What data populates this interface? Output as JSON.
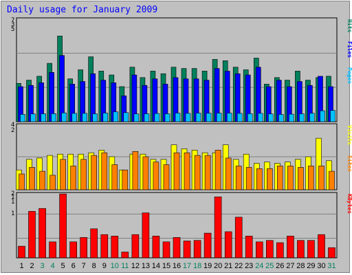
{
  "title": "Daily usage for January 2009",
  "colors": {
    "background": "#c0c0c0",
    "grid": "#808080",
    "hits": "#00805c",
    "files": "#0000ff",
    "pages": "#00c0ff",
    "visits": "#ffff00",
    "sites": "#ff8000",
    "kbytes": "#ff0000",
    "weekday_label": "#000000",
    "weekend_label": "#00805c"
  },
  "chart_data": [
    {
      "type": "bar",
      "panel": "top",
      "categories": [
        "1",
        "2",
        "3",
        "4",
        "5",
        "6",
        "7",
        "8",
        "9",
        "10",
        "11",
        "12",
        "13",
        "14",
        "15",
        "16",
        "17",
        "18",
        "19",
        "20",
        "21",
        "22",
        "23",
        "24",
        "25",
        "26",
        "27",
        "28",
        "29",
        "30",
        "31"
      ],
      "weekend": [
        3,
        4,
        10,
        11,
        17,
        18,
        24,
        25,
        31
      ],
      "ylim": [
        0,
        8000
      ],
      "y_tick_labels": [
        "7",
        "3",
        "5"
      ],
      "legend": [
        "Hits",
        "Files",
        "Pages"
      ],
      "series": [
        {
          "name": "Hits",
          "color": "#00805c",
          "values": [
            2950,
            3200,
            3500,
            4500,
            6600,
            3300,
            4000,
            5000,
            3900,
            3600,
            2700,
            4200,
            3400,
            3900,
            3700,
            4200,
            4100,
            4100,
            3900,
            4800,
            4700,
            4200,
            4000,
            4900,
            2900,
            3400,
            3200,
            3900,
            3200,
            3400,
            3500
          ]
        },
        {
          "name": "Files",
          "color": "#0000ff",
          "values": [
            2700,
            2800,
            3000,
            3800,
            5100,
            2900,
            3100,
            3700,
            3200,
            3000,
            1990,
            3600,
            2800,
            3300,
            2900,
            3400,
            3300,
            3300,
            3200,
            4100,
            3900,
            3700,
            3600,
            4200,
            2700,
            3200,
            2700,
            3100,
            2800,
            3500,
            2700
          ]
        },
        {
          "name": "Pages",
          "color": "#00c0ff",
          "values": [
            560,
            600,
            610,
            620,
            680,
            640,
            640,
            610,
            670,
            760,
            700,
            600,
            610,
            630,
            610,
            660,
            640,
            660,
            650,
            660,
            660,
            640,
            620,
            640,
            600,
            560,
            580,
            610,
            650,
            840,
            870
          ]
        }
      ]
    },
    {
      "type": "bar",
      "panel": "middle",
      "categories": [
        "1",
        "2",
        "3",
        "4",
        "5",
        "6",
        "7",
        "8",
        "9",
        "10",
        "11",
        "12",
        "13",
        "14",
        "15",
        "16",
        "17",
        "18",
        "19",
        "20",
        "21",
        "22",
        "23",
        "24",
        "25",
        "26",
        "27",
        "28",
        "29",
        "30",
        "31"
      ],
      "ylim": [
        0,
        500
      ],
      "y_tick_labels": [
        "4",
        "2"
      ],
      "legend": [
        "Visits",
        "Sites"
      ],
      "series": [
        {
          "name": "Visits",
          "color": "#ffff00",
          "values": [
            150,
            230,
            240,
            260,
            270,
            270,
            270,
            280,
            300,
            250,
            150,
            270,
            270,
            230,
            230,
            340,
            310,
            300,
            280,
            280,
            340,
            230,
            270,
            200,
            210,
            200,
            210,
            230,
            250,
            390,
            220
          ]
        },
        {
          "name": "Sites",
          "color": "#ff8000",
          "values": [
            120,
            170,
            140,
            110,
            230,
            180,
            230,
            260,
            280,
            190,
            150,
            290,
            250,
            210,
            190,
            280,
            280,
            260,
            260,
            300,
            240,
            180,
            170,
            160,
            160,
            180,
            180,
            170,
            180,
            180,
            140
          ]
        }
      ]
    },
    {
      "type": "bar",
      "panel": "bottom",
      "categories": [
        "1",
        "2",
        "3",
        "4",
        "5",
        "6",
        "7",
        "8",
        "9",
        "10",
        "11",
        "12",
        "13",
        "14",
        "15",
        "16",
        "17",
        "18",
        "19",
        "20",
        "21",
        "22",
        "23",
        "24",
        "25",
        "26",
        "27",
        "28",
        "29",
        "30",
        "31"
      ],
      "ylim": [
        0,
        225
      ],
      "y_tick_labels": [
        "2",
        "1",
        "1",
        "1"
      ],
      "legend": [
        "KBytes"
      ],
      "series": [
        {
          "name": "KBytes",
          "color": "#ff0000",
          "values": [
            40,
            160,
            170,
            55,
            220,
            55,
            70,
            100,
            80,
            75,
            20,
            80,
            155,
            75,
            55,
            70,
            58,
            60,
            85,
            210,
            90,
            140,
            75,
            55,
            60,
            52,
            75,
            60,
            60,
            80,
            35
          ]
        }
      ]
    }
  ]
}
